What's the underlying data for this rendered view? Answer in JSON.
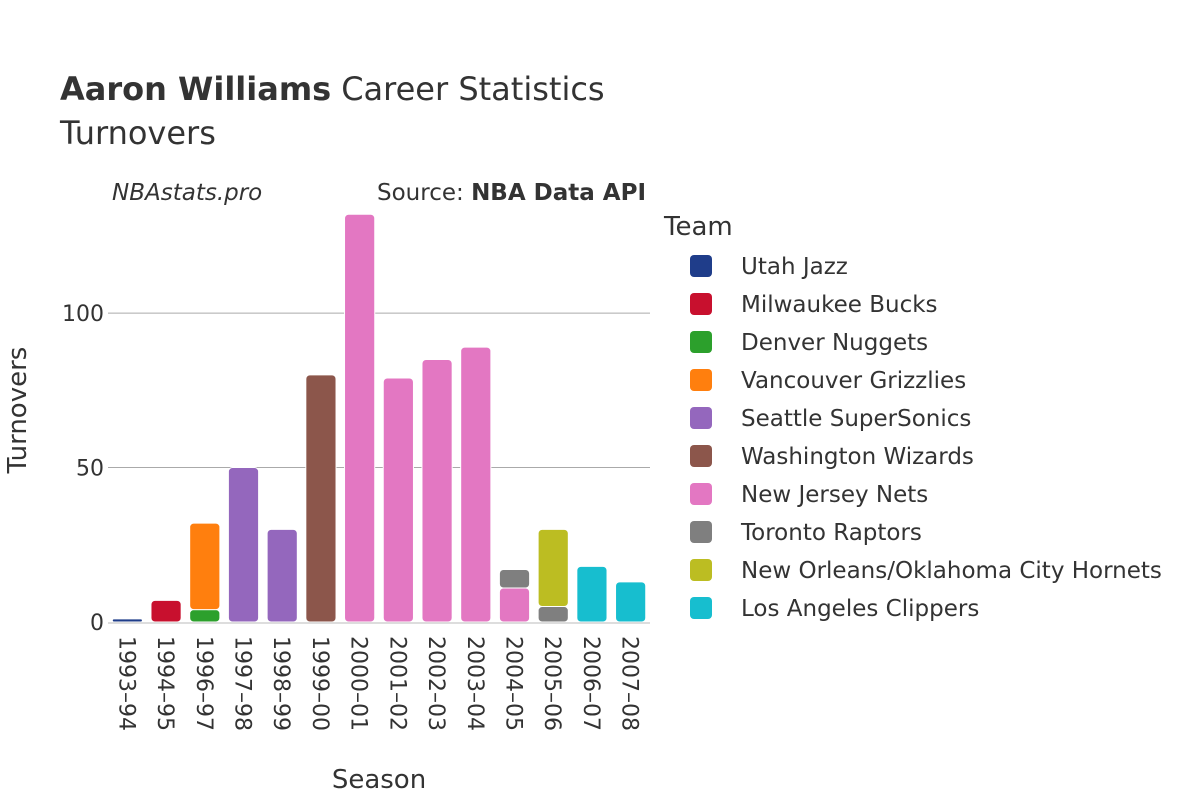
{
  "title": {
    "player": "Aaron Williams",
    "rest": "Career Statistics",
    "subtitle": "Turnovers"
  },
  "brand": "NBAstats.pro",
  "source": {
    "prefix": "Source: ",
    "name": "NBA Data API"
  },
  "chart_data": {
    "type": "bar",
    "stacked": true,
    "title": "Aaron Williams Career Statistics Turnovers",
    "xlabel": "Season",
    "ylabel": "Turnovers",
    "ylim": [
      0,
      135
    ],
    "yticks": [
      0,
      50,
      100
    ],
    "grid": true,
    "legend_position": "right",
    "legend_title": "Team",
    "categories": [
      "1993–94",
      "1994–95",
      "1996–97",
      "1997–98",
      "1998–99",
      "1999–00",
      "2000–01",
      "2001–02",
      "2002–03",
      "2003–04",
      "2004–05",
      "2005–06",
      "2006–07",
      "2007–08"
    ],
    "series": [
      {
        "name": "Utah Jazz",
        "color": "#1f3d8a",
        "values": [
          1,
          0,
          0,
          0,
          0,
          0,
          0,
          0,
          0,
          0,
          0,
          0,
          0,
          0
        ]
      },
      {
        "name": "Milwaukee Bucks",
        "color": "#c8102e",
        "values": [
          0,
          7,
          0,
          0,
          0,
          0,
          0,
          0,
          0,
          0,
          0,
          0,
          0,
          0
        ]
      },
      {
        "name": "Denver Nuggets",
        "color": "#2ca02c",
        "values": [
          0,
          0,
          4,
          0,
          0,
          0,
          0,
          0,
          0,
          0,
          0,
          0,
          0,
          0
        ]
      },
      {
        "name": "Vancouver Grizzlies",
        "color": "#ff7f0e",
        "values": [
          0,
          0,
          28,
          0,
          0,
          0,
          0,
          0,
          0,
          0,
          0,
          0,
          0,
          0
        ]
      },
      {
        "name": "Seattle SuperSonics",
        "color": "#9467bd",
        "values": [
          0,
          0,
          0,
          50,
          30,
          0,
          0,
          0,
          0,
          0,
          0,
          0,
          0,
          0
        ]
      },
      {
        "name": "Washington Wizards",
        "color": "#8c564b",
        "values": [
          0,
          0,
          0,
          0,
          0,
          80,
          0,
          0,
          0,
          0,
          0,
          0,
          0,
          0
        ]
      },
      {
        "name": "New Jersey Nets",
        "color": "#e377c2",
        "values": [
          0,
          0,
          0,
          0,
          0,
          0,
          132,
          79,
          85,
          89,
          11,
          0,
          0,
          0
        ]
      },
      {
        "name": "Toronto Raptors",
        "color": "#7f7f7f",
        "values": [
          0,
          0,
          0,
          0,
          0,
          0,
          0,
          0,
          0,
          0,
          6,
          5,
          0,
          0
        ]
      },
      {
        "name": "New Orleans/Oklahoma City Hornets",
        "color": "#bcbd22",
        "values": [
          0,
          0,
          0,
          0,
          0,
          0,
          0,
          0,
          0,
          0,
          0,
          25,
          0,
          0
        ]
      },
      {
        "name": "Los Angeles Clippers",
        "color": "#17becf",
        "values": [
          0,
          0,
          0,
          0,
          0,
          0,
          0,
          0,
          0,
          0,
          0,
          0,
          18,
          13
        ]
      }
    ]
  }
}
